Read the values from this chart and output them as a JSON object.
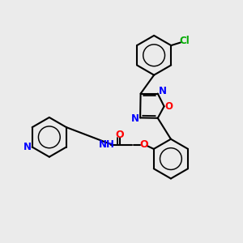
{
  "bg_color": "#ebebeb",
  "bond_color": "#000000",
  "bond_width": 1.5,
  "atom_colors": {
    "N": "#0000ff",
    "O": "#ff0000",
    "Cl": "#00aa00",
    "H": "#444444"
  },
  "font_size": 8.5,
  "fig_width": 3.0,
  "fig_height": 3.0
}
